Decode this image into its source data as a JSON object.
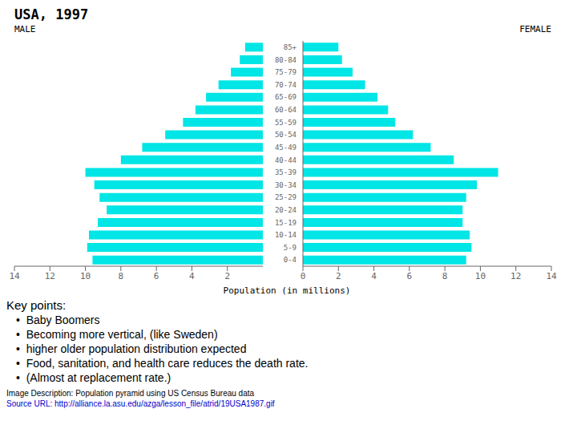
{
  "chart_data": {
    "type": "bar",
    "orientation": "horizontal",
    "title": "USA, 1997",
    "categories": [
      "0-4",
      "5-9",
      "10-14",
      "15-19",
      "20-24",
      "25-29",
      "30-34",
      "35-39",
      "40-44",
      "45-49",
      "50-54",
      "55-59",
      "60-64",
      "65-69",
      "70-74",
      "75-79",
      "80-84",
      "85+"
    ],
    "series": [
      {
        "name": "MALE",
        "color": "#00E5E5",
        "values": [
          9.6,
          9.9,
          9.8,
          9.3,
          8.8,
          9.2,
          9.5,
          10.0,
          8.0,
          6.8,
          5.5,
          4.5,
          3.8,
          3.2,
          2.5,
          1.8,
          1.3,
          1.0
        ]
      },
      {
        "name": "FEMALE",
        "color": "#00E5E5",
        "values": [
          9.2,
          9.5,
          9.4,
          9.0,
          9.0,
          9.2,
          9.8,
          11.0,
          8.5,
          7.2,
          6.2,
          5.2,
          4.8,
          4.2,
          3.5,
          2.8,
          2.2,
          2.0
        ]
      }
    ],
    "xlabel": "Population (in millions)",
    "xlim": [
      0,
      14
    ],
    "xticks": [
      0,
      2,
      4,
      6,
      8,
      10,
      12,
      14
    ],
    "grid": false,
    "annotations": [
      "Key points:",
      "•  Baby Boomers",
      "•  Becoming more vertical, (like Sweden)",
      "•  higher older population distribution expected",
      "•  Food, sanitation, and health care reduces the death rate.",
      "•  (Almost at replacement rate.)",
      "Image Description: Population pyramid using US Census Bureau data",
      "Source URL: http://alliance.la.asu.edu/azga/lesson_file/atrid/19USA1987.gif"
    ]
  }
}
